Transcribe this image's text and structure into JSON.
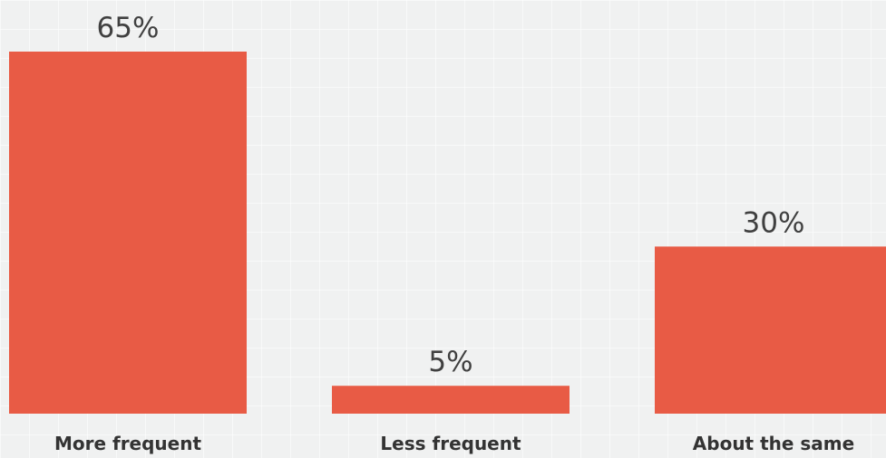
{
  "chart_data": {
    "type": "bar",
    "categories": [
      "More frequent",
      "Less frequent",
      "About the same"
    ],
    "values": [
      65,
      5,
      30
    ],
    "value_labels": [
      "65%",
      "5%",
      "30%"
    ],
    "ylim": [
      0,
      65
    ],
    "grid": false,
    "bar_color": "#e85b45"
  }
}
